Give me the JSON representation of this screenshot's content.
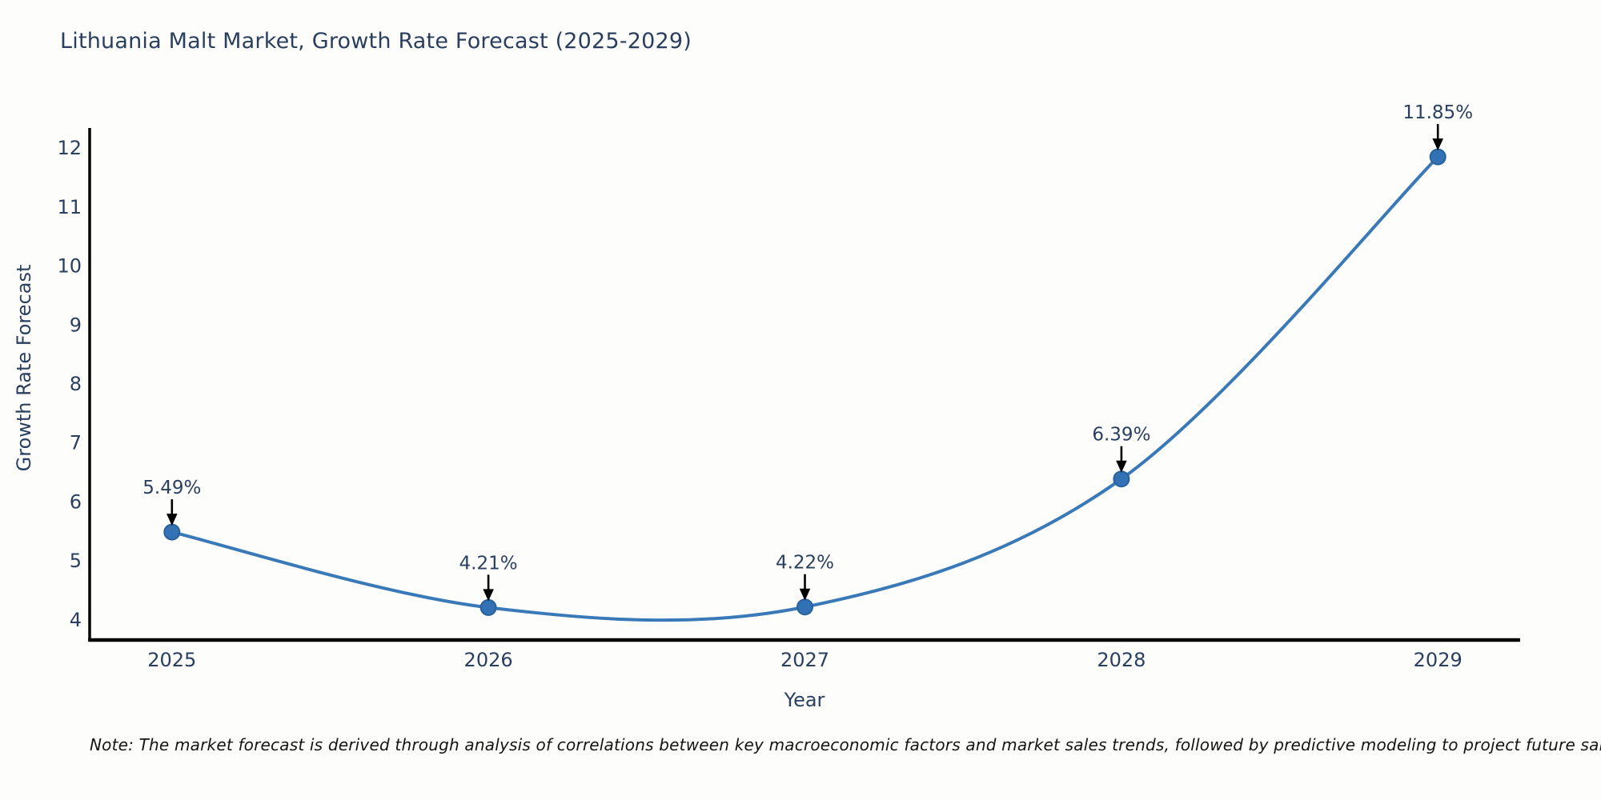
{
  "page": {
    "background": "#fdfdfc"
  },
  "chart_data": {
    "type": "line",
    "title": "Lithuania Malt Market, Growth Rate Forecast (2025-2029)",
    "xlabel": "Year",
    "ylabel": "Growth Rate Forecast",
    "note": "Note: The market forecast is derived through analysis of correlations between key macroeconomic factors and market sales trends, followed by predictive modeling to project future sales",
    "categories": [
      2025,
      2026,
      2027,
      2028,
      2029
    ],
    "series": [
      {
        "name": "Growth Rate Forecast",
        "values": [
          5.49,
          4.21,
          4.22,
          6.39,
          11.85
        ]
      }
    ],
    "point_labels": [
      "5.49%",
      "4.21%",
      "4.22%",
      "6.39%",
      "11.85%"
    ],
    "x_tick_labels": [
      "2025",
      "2026",
      "2027",
      "2028",
      "2029"
    ],
    "y_ticks": [
      4,
      5,
      6,
      7,
      8,
      9,
      10,
      11,
      12
    ],
    "xlim": [
      2024.74,
      2029.26
    ],
    "ylim": [
      3.66,
      12.34
    ],
    "grid": false,
    "legend": "none",
    "line_shape": "spline",
    "colors": {
      "line": "#3a79b7",
      "marker_fill": "#3272b4",
      "marker_edge": "#28619c",
      "axis": "#000000",
      "tick_text": "#2a3f5f",
      "annotation_text": "#2a3f5f",
      "arrow": "#000000",
      "note_text": "#141414"
    }
  }
}
